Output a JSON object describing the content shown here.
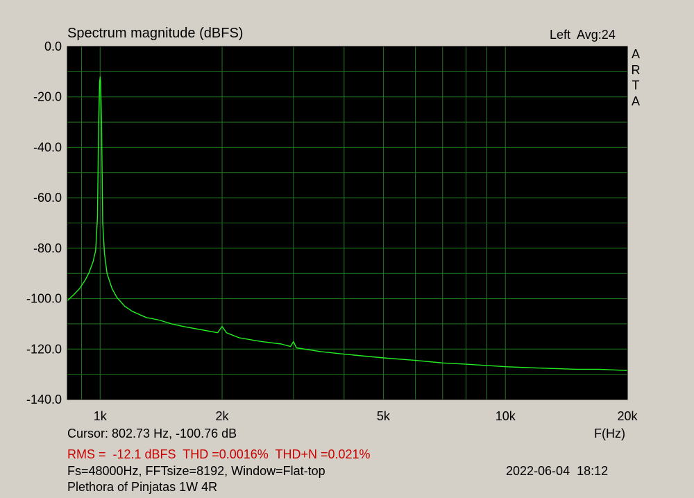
{
  "header": {
    "channel": "Left  Avg:24"
  },
  "side_label": [
    "A",
    "R",
    "T",
    "A"
  ],
  "info": {
    "cursor": "Cursor: 802.73 Hz, -100.76 dB",
    "measurements": "RMS =  -12.1 dBFS  THD =0.0016%  THD+N =0.021%",
    "settings": "Fs=48000Hz, FFTsize=8192, Window=Flat-top",
    "datetime": "2022-06-04  18:12",
    "description": "Plethora of Pinjatas 1W 4R"
  },
  "colors": {
    "plot_bg": "#000000",
    "grid": "#1f7a1f",
    "trace": "#22ee22",
    "window_bg": "#d4d0c8",
    "measure_text": "#cc0000"
  },
  "chart_data": {
    "type": "line",
    "title": "Spectrum magnitude (dBFS)",
    "xlabel": "F(Hz)",
    "ylabel": "",
    "x_scale": "log",
    "xlim": [
      830,
      20000
    ],
    "ylim": [
      -140,
      0
    ],
    "grid": true,
    "x_ticks": [
      {
        "value": 1000,
        "label": "1k"
      },
      {
        "value": 2000,
        "label": "2k"
      },
      {
        "value": 5000,
        "label": "5k"
      },
      {
        "value": 10000,
        "label": "10k"
      },
      {
        "value": 20000,
        "label": "20k"
      }
    ],
    "y_ticks": [
      {
        "value": 0,
        "label": "0.0"
      },
      {
        "value": -20,
        "label": "-20.0"
      },
      {
        "value": -40,
        "label": "-40.0"
      },
      {
        "value": -60,
        "label": "-60.0"
      },
      {
        "value": -80,
        "label": "-80.0"
      },
      {
        "value": -100,
        "label": "-100.0"
      },
      {
        "value": -120,
        "label": "-120.0"
      },
      {
        "value": -140,
        "label": "-140.0"
      }
    ],
    "series": [
      {
        "x": [
          830,
          860,
          890,
          920,
          940,
          960,
          975,
          985,
          992,
          997,
          1000,
          1003,
          1008,
          1015,
          1025,
          1040,
          1070,
          1100,
          1150,
          1200,
          1300,
          1400,
          1500,
          1600,
          1800,
          1950,
          2000,
          2050,
          2200,
          2500,
          2800,
          2950,
          3000,
          3050,
          3500,
          4000,
          5000,
          6000,
          7000,
          8000,
          10000,
          12000,
          15000,
          17000,
          20000
        ],
        "y": [
          -100.8,
          -98.5,
          -96,
          -92.5,
          -89.5,
          -85.5,
          -81,
          -68,
          -30,
          -14,
          -12.1,
          -14,
          -30,
          -70,
          -82,
          -90,
          -96,
          -99.5,
          -103,
          -105,
          -107.5,
          -108.5,
          -110,
          -111,
          -112.5,
          -113.5,
          -111,
          -113.5,
          -115.5,
          -117,
          -118,
          -119,
          -117,
          -119.5,
          -121,
          -122,
          -123.5,
          -124.5,
          -125.5,
          -126,
          -127,
          -127.5,
          -128,
          -128,
          -128.5
        ]
      }
    ]
  }
}
